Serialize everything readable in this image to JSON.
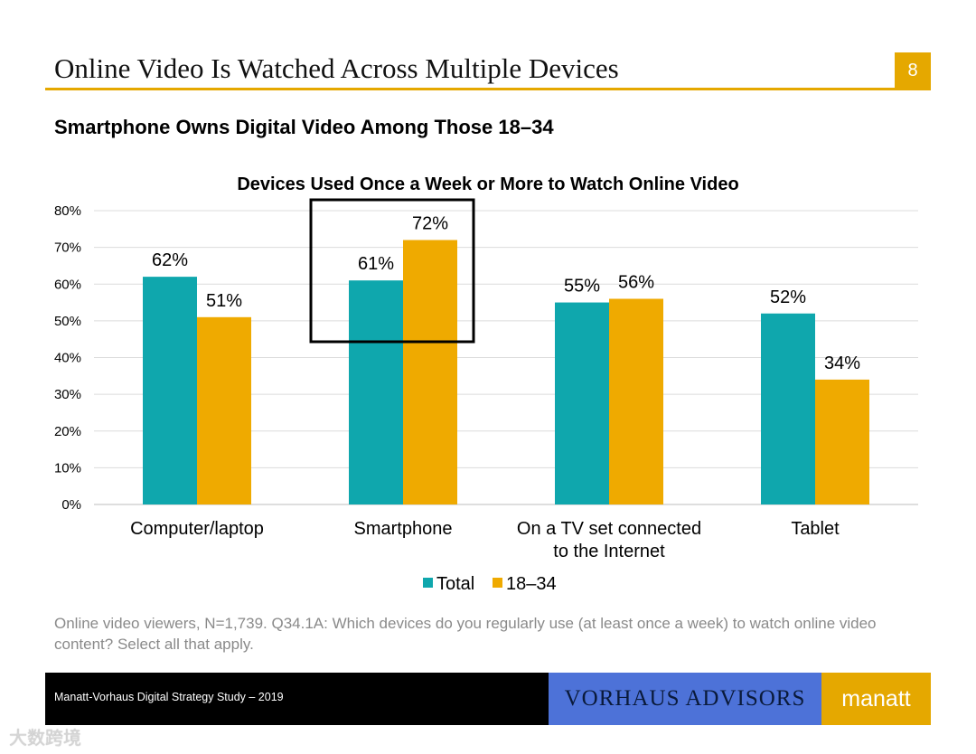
{
  "slide": {
    "title": "Online Video Is Watched Across Multiple Devices",
    "page_number": "8",
    "subtitle": "Smartphone Owns Digital Video Among Those 18–34",
    "footnote": "Online video viewers, N=1,739. Q34.1A: Which devices do you regularly use (at least once a week) to watch online video content? Select all that apply.",
    "footer_text": "Manatt-Vorhaus Digital Strategy Study – 2019",
    "vorhaus_logo": "VORHAUS ADVISORS",
    "manatt_logo": "manatt",
    "watermark": "大数跨境"
  },
  "colors": {
    "accent": "#E5A800",
    "total": "#0FA7AD",
    "age_18_34": "#EFAA00",
    "vorhaus_blue": "#4D72D8",
    "footer_black": "#000000",
    "footnote_gray": "#8a8a8a"
  },
  "chart_data": {
    "type": "bar",
    "title": "Devices Used Once a Week or More to Watch Online Video",
    "categories": [
      [
        "Computer/laptop"
      ],
      [
        "Smartphone"
      ],
      [
        "On a TV set connected",
        "to the Internet"
      ],
      [
        "Tablet"
      ]
    ],
    "series": [
      {
        "name": "Total",
        "values": [
          62,
          61,
          55,
          52
        ],
        "labels": [
          "62%",
          "61%",
          "55%",
          "52%"
        ],
        "color": "#0FA7AD"
      },
      {
        "name": "18–34",
        "values": [
          51,
          72,
          56,
          34
        ],
        "labels": [
          "51%",
          "72%",
          "56%",
          "34%"
        ],
        "color": "#EFAA00"
      }
    ],
    "ylim": [
      0,
      80
    ],
    "yticks": [
      "0%",
      "10%",
      "20%",
      "30%",
      "40%",
      "50%",
      "60%",
      "70%",
      "80%"
    ],
    "grid": true,
    "legend": "bottom",
    "highlight_category": "Smartphone"
  }
}
